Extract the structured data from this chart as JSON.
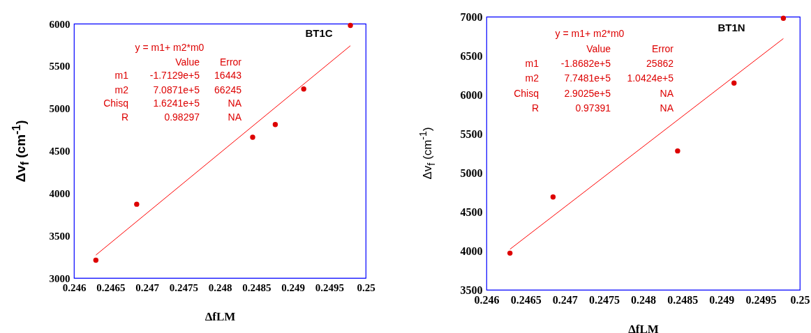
{
  "chart_data": [
    {
      "type": "scatter",
      "title": "BT1C",
      "xlabel": "ΔfLM",
      "ylabel": "Δv$_{f}$ (cm$^{-1}$)",
      "xlim": [
        0.246,
        0.25
      ],
      "xticks": [
        0.246,
        0.2465,
        0.247,
        0.2475,
        0.248,
        0.2485,
        0.249,
        0.2495,
        0.25
      ],
      "ylim": [
        3000,
        6000
      ],
      "yticks": [
        3000,
        3500,
        4000,
        4500,
        5000,
        5500,
        6000
      ],
      "series": [
        {
          "type": "scatter",
          "marker": "circle",
          "color": "#dd0000",
          "x": [
            0.2463,
            0.24686,
            0.24845,
            0.24876,
            0.24915,
            0.24979
          ],
          "values": [
            3210,
            3870,
            4660,
            4810,
            5230,
            5980
          ]
        },
        {
          "type": "line",
          "color": "#ff0000",
          "x": [
            0.2463,
            0.24979
          ],
          "values": [
            3270,
            5740
          ]
        }
      ],
      "annotations": [
        "y = m1+  m2*m0",
        "Value",
        "Error",
        "m1",
        "-1.7129e+5",
        "16443",
        "m2",
        "7.0871e+5",
        "66245",
        "Chisq",
        "1.6241e+5",
        "NA",
        "R",
        "0.98297",
        "NA"
      ]
    },
    {
      "type": "scatter",
      "title": "BT1N",
      "xlabel": "ΔfLM",
      "ylabel": "Δv$_{f}$ (cm$^{-1}$)",
      "xlim": [
        0.246,
        0.25
      ],
      "xticks": [
        0.246,
        0.2465,
        0.247,
        0.2475,
        0.248,
        0.2485,
        0.249,
        0.2495,
        0.25
      ],
      "ylim": [
        3500,
        7000
      ],
      "yticks": [
        3500,
        4000,
        4500,
        5000,
        5500,
        6000,
        6500,
        7000
      ],
      "series": [
        {
          "type": "scatter",
          "marker": "circle",
          "color": "#dd0000",
          "x": [
            0.2463,
            0.24685,
            0.24844,
            0.24916,
            0.24979
          ],
          "values": [
            3970,
            4690,
            5280,
            6150,
            6980
          ]
        },
        {
          "type": "line",
          "color": "#ff0000",
          "x": [
            0.2463,
            0.24979
          ],
          "values": [
            4020,
            6720
          ]
        }
      ],
      "annotations": [
        "y = m1+  m2*m0",
        "Value",
        "Error",
        "m1",
        "-1.8682e+5",
        "25862",
        "m2",
        "7.7481e+5",
        "1.0424e+5",
        "Chisq",
        "2.9025e+5",
        "NA",
        "R",
        "0.97391",
        "NA"
      ]
    }
  ]
}
